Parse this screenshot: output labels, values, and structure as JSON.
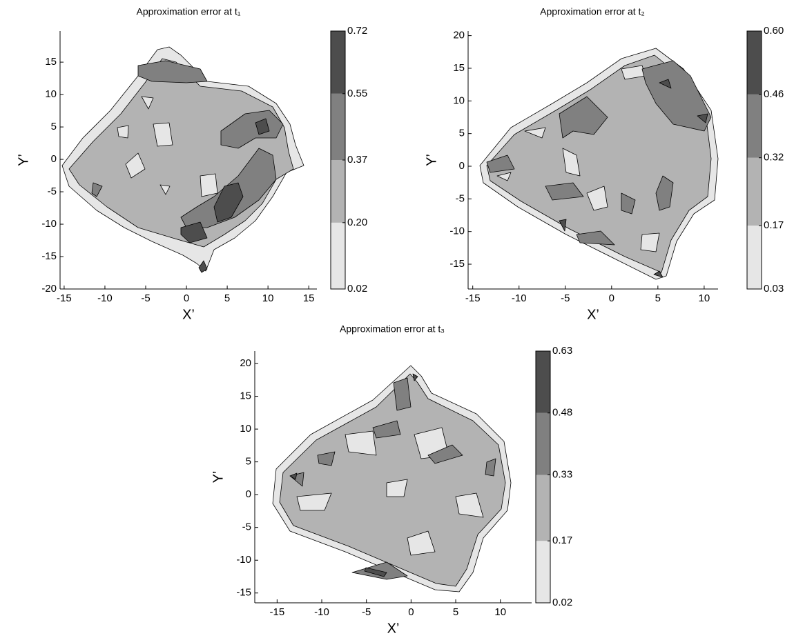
{
  "chart_data": [
    {
      "type": "contour",
      "title": "Approximation error at t₁",
      "x_label": "X’",
      "y_label": "Y’",
      "xlim": [
        -15.5,
        16
      ],
      "ylim": [
        -20,
        19.8
      ],
      "xticks": [
        -15,
        -10,
        -5,
        0,
        5,
        10,
        15
      ],
      "yticks": [
        -20,
        -15,
        -10,
        -5,
        0,
        5,
        10,
        15
      ],
      "colorbar_ticks": [
        0.02,
        {
          "value": 0.2,
          "label": "0.20"
        },
        0.37,
        0.55,
        0.72
      ],
      "colors": [
        "#e6e6e6",
        "#b3b3b3",
        "#808080",
        "#4d4d4d"
      ]
    },
    {
      "type": "contour",
      "title": "Approximation error at t₂",
      "x_label": "X’",
      "y_label": "Y’",
      "xlim": [
        -15.5,
        11.5
      ],
      "ylim": [
        -18.8,
        20.7
      ],
      "xticks": [
        -15,
        -10,
        -5,
        0,
        5,
        10
      ],
      "yticks": [
        -15,
        -10,
        -5,
        0,
        5,
        10,
        15,
        20
      ],
      "colorbar_ticks": [
        0.03,
        0.17,
        0.32,
        0.46,
        {
          "value": 0.6,
          "label": "0.60"
        }
      ],
      "colors": [
        "#e6e6e6",
        "#b3b3b3",
        "#808080",
        "#4d4d4d"
      ]
    },
    {
      "type": "contour",
      "title": "Approximation error at t₃",
      "x_label": "X’",
      "y_label": "Y’",
      "xlim": [
        -17.5,
        13.5
      ],
      "ylim": [
        -16.5,
        21.9
      ],
      "xticks": [
        -15,
        -10,
        -5,
        0,
        5,
        10
      ],
      "yticks": [
        -15,
        -10,
        -5,
        0,
        5,
        10,
        15,
        20
      ],
      "colorbar_ticks": [
        0.02,
        0.17,
        0.33,
        0.48,
        0.63
      ],
      "colors": [
        "#e6e6e6",
        "#b3b3b3",
        "#808080",
        "#4d4d4d"
      ]
    }
  ]
}
